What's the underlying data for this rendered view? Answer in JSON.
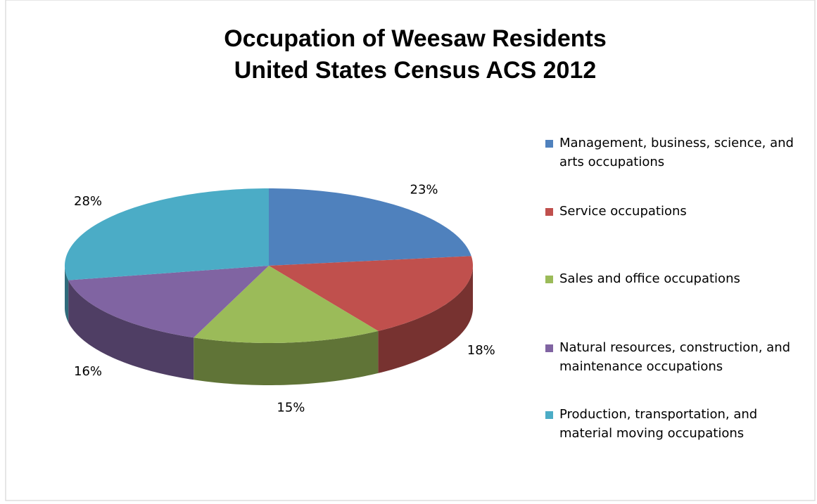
{
  "chart_data": {
    "type": "pie",
    "title": "Occupation of Weesaw Residents",
    "subtitle": "United States Census ACS 2012",
    "categories": [
      "Management, business, science, and arts occupations",
      "Service occupations",
      "Sales and office occupations",
      "Natural resources, construction, and maintenance occupations",
      "Production, transportation, and material moving occupations"
    ],
    "values": [
      23,
      18,
      15,
      16,
      28
    ],
    "value_labels": [
      "23%",
      "18%",
      "15%",
      "16%",
      "28%"
    ],
    "colors": [
      "#4f81bd",
      "#c0504d",
      "#9bbb59",
      "#8064a2",
      "#4bacc6"
    ],
    "legend": "right"
  }
}
